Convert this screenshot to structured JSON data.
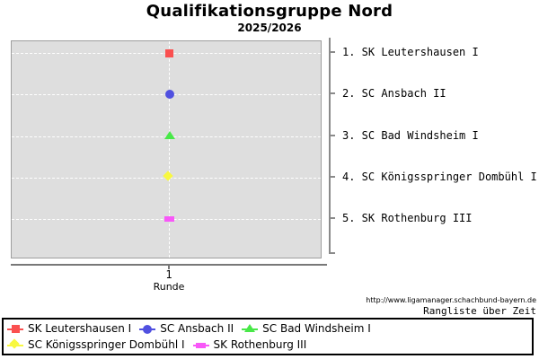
{
  "title": "Qualifikationsgruppe Nord",
  "subtitle": "2025/2026",
  "x_axis": {
    "tick_label": "1",
    "axis_label": "Runde"
  },
  "footer": {
    "url": "http://www.ligamanager.schachbund-bayern.de",
    "caption": "Rangliste über Zeit"
  },
  "colors": {
    "plot_background": "#dedede",
    "grid": "#ffffff",
    "axis": "#787878"
  },
  "chart_data": {
    "type": "scatter",
    "title": "Qualifikationsgruppe Nord",
    "subtitle": "2025/2026",
    "xlabel": "Runde",
    "x": [
      1
    ],
    "x_tick_labels": [
      "1"
    ],
    "ylabel": "",
    "y_meaning": "Tabellenplatz (Rang 1 oben bis Rang 5 unten)",
    "ylim": [
      1,
      5
    ],
    "grid": "white dashed grid at each rank and at round 1",
    "legend_position": "bottom box, two rows",
    "series": [
      {
        "name": "SK Leutershausen I",
        "marker": "square",
        "color": "#fa5050",
        "rank_values": [
          1
        ],
        "legend_row": 0
      },
      {
        "name": "SC Ansbach II",
        "marker": "circle",
        "color": "#5050e0",
        "rank_values": [
          2
        ],
        "legend_row": 0
      },
      {
        "name": "SC Bad Windsheim I",
        "marker": "triangle",
        "color": "#48e848",
        "rank_values": [
          3
        ],
        "legend_row": 0
      },
      {
        "name": "SC Königsspringer Dombühl I",
        "marker": "diamond",
        "color": "#f8f840",
        "rank_values": [
          4
        ],
        "legend_row": 1
      },
      {
        "name": "SK Rothenburg III",
        "marker": "hbar",
        "color": "#f858f8",
        "rank_values": [
          5
        ],
        "legend_row": 1
      }
    ],
    "rank_labels": [
      "1. SK Leutershausen I",
      "2. SC Ansbach II",
      "3. SC Bad Windsheim I",
      "4. SC Königsspringer Dombühl I",
      "5. SK Rothenburg III"
    ]
  }
}
